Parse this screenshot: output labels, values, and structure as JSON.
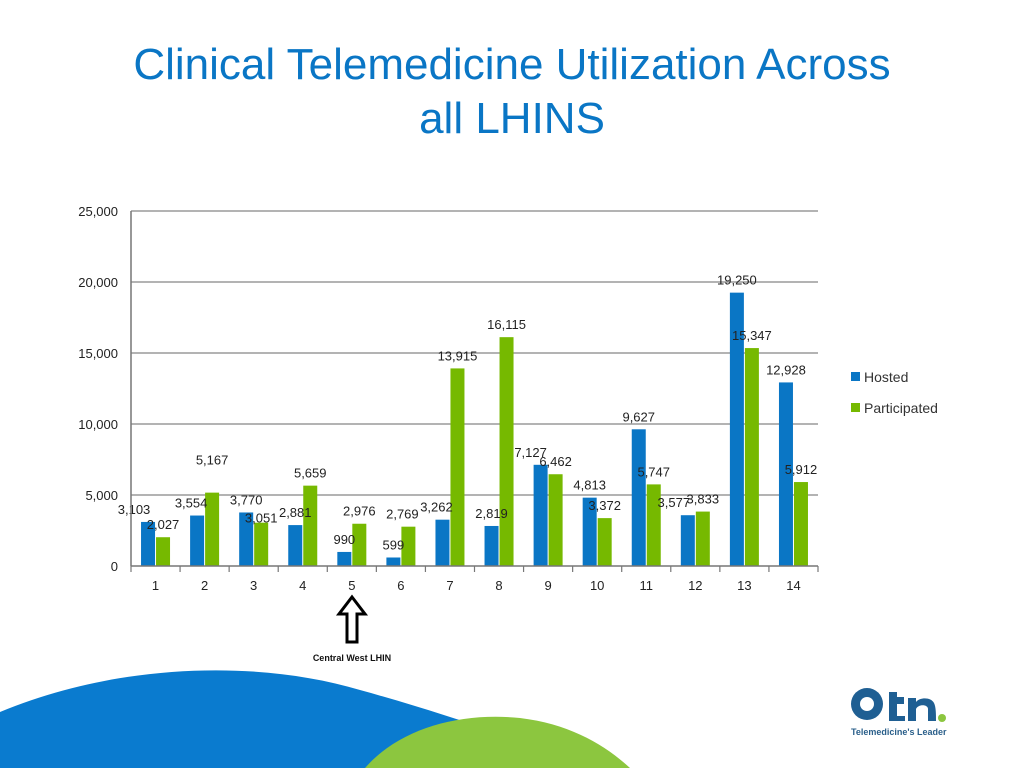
{
  "slide": {
    "title_line1": "Clinical Telemedicine Utilization Across",
    "title_line2": "all LHINS",
    "annotation": "Central West LHIN",
    "logo_text": "otn.",
    "tagline": "Telemedicine's Leader"
  },
  "colors": {
    "title": "#0a76c5",
    "hosted": "#0a76c5",
    "participated": "#76b900",
    "wave_blue": "#0a7bcf",
    "wave_green": "#8cc63f"
  },
  "chart_data": {
    "type": "bar",
    "categories": [
      "1",
      "2",
      "3",
      "4",
      "5",
      "6",
      "7",
      "8",
      "9",
      "10",
      "11",
      "12",
      "13",
      "14"
    ],
    "series": [
      {
        "name": "Hosted",
        "values": [
          3103,
          3554,
          3770,
          2881,
          990,
          599,
          3262,
          2819,
          7127,
          4813,
          9627,
          3577,
          19250,
          12928
        ],
        "labels": [
          "3,103",
          "3,554",
          "3,770",
          "2,881",
          "990",
          "599",
          "3,262",
          "2,819",
          "7,127",
          "4,813",
          "9,627",
          "3,577",
          "19,250",
          "12,928"
        ]
      },
      {
        "name": "Participated",
        "values": [
          2027,
          5167,
          3051,
          5659,
          2976,
          2769,
          13915,
          16115,
          6462,
          3372,
          5747,
          3833,
          15347,
          5912
        ],
        "labels": [
          "2,027",
          "5,167",
          "3,051",
          "5,659",
          "2,976",
          "2,769",
          "13,915",
          "16,115",
          "6,462",
          "3,372",
          "5,747",
          "3,833",
          "15,347",
          "5,912"
        ]
      }
    ],
    "ylim": [
      0,
      25000
    ],
    "yticks": [
      0,
      5000,
      10000,
      15000,
      20000,
      25000
    ],
    "ytick_labels": [
      "0",
      "5,000",
      "10,000",
      "15,000",
      "20,000",
      "25,000"
    ],
    "grid": true,
    "legend_position": "right"
  }
}
